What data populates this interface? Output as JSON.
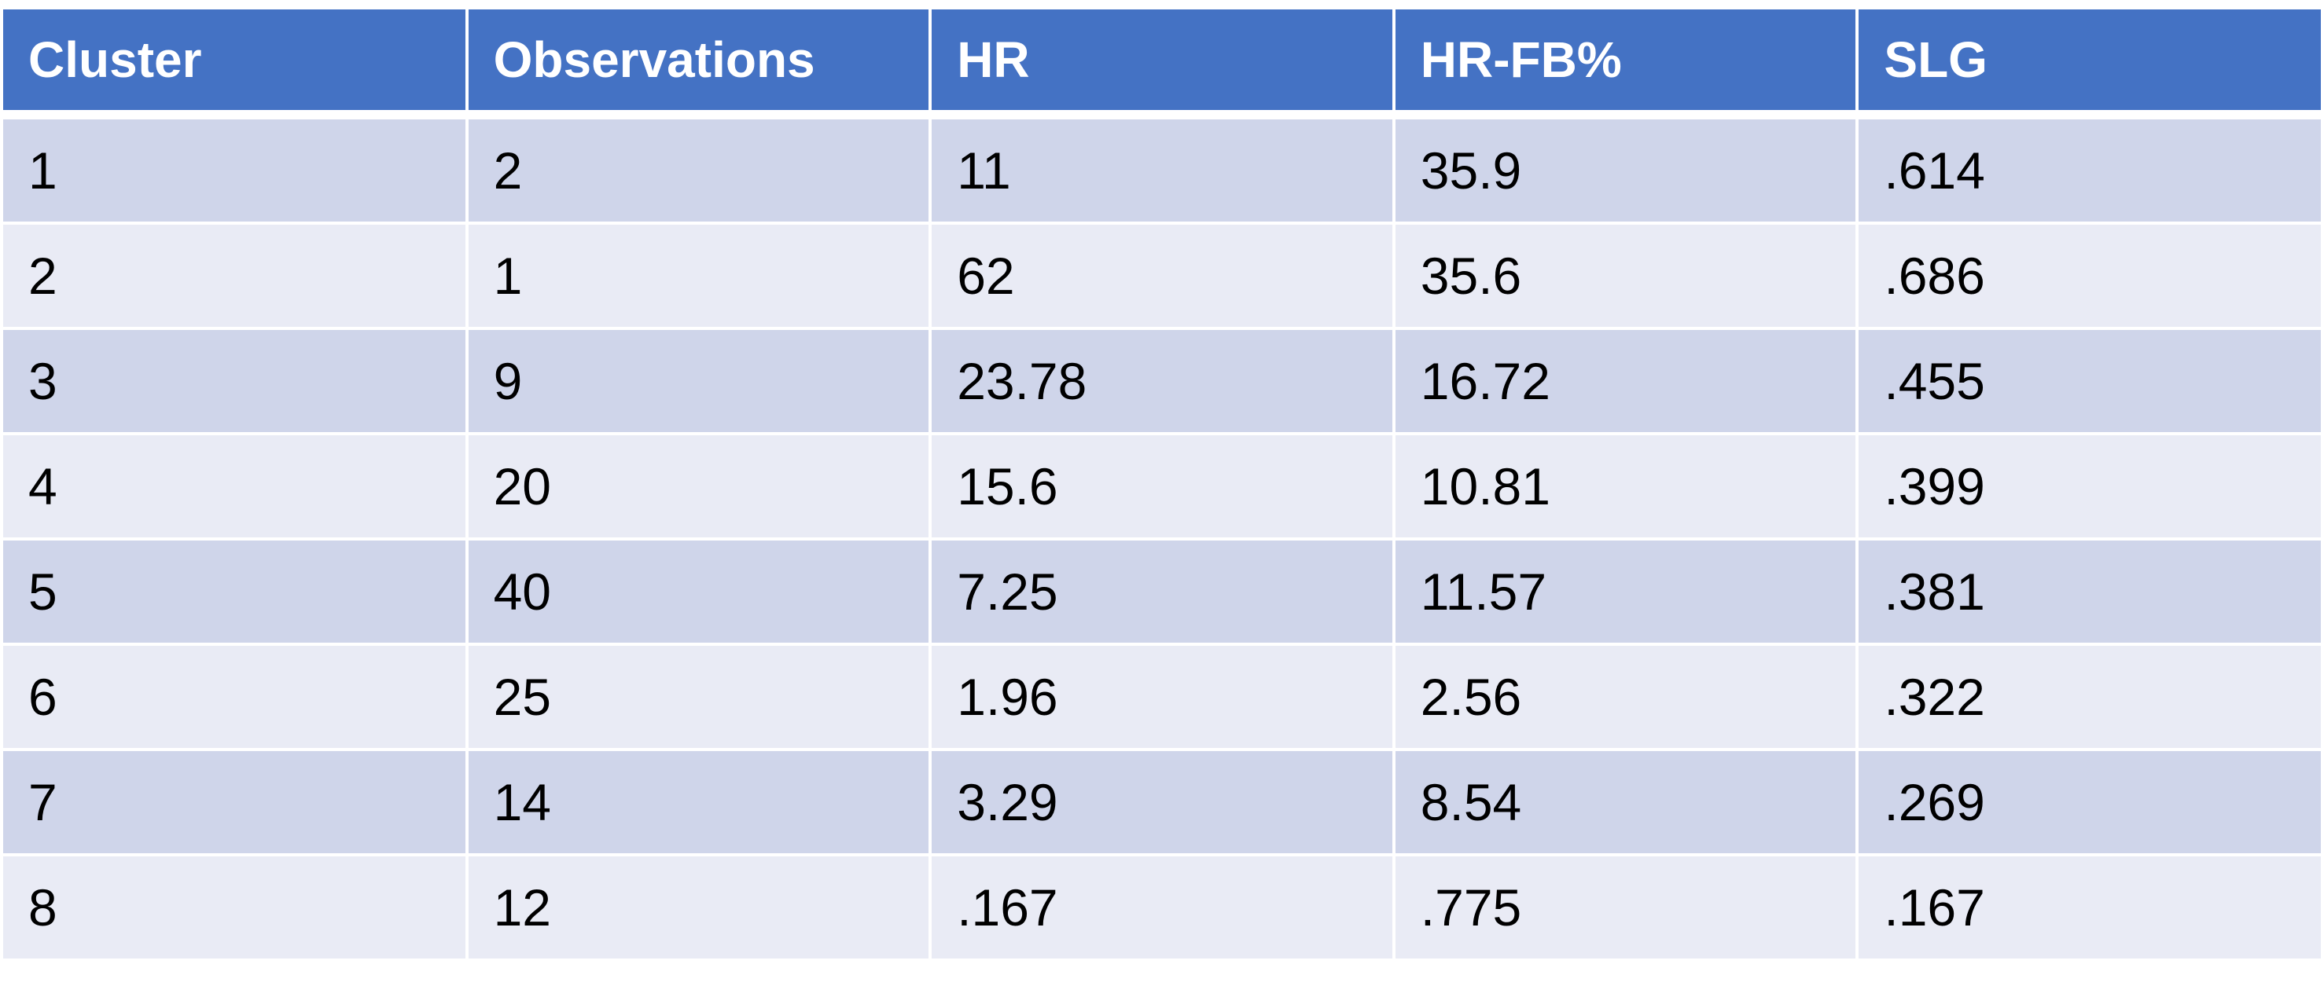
{
  "chart_data": {
    "type": "table",
    "columns": [
      "Cluster",
      "Observations",
      "HR",
      "HR-FB%",
      "SLG"
    ],
    "rows": [
      [
        "1",
        "2",
        "11",
        "35.9",
        ".614"
      ],
      [
        "2",
        "1",
        "62",
        "35.6",
        ".686"
      ],
      [
        "3",
        "9",
        "23.78",
        "16.72",
        ".455"
      ],
      [
        "4",
        "20",
        "15.6",
        "10.81",
        ".399"
      ],
      [
        "5",
        "40",
        "7.25",
        "11.57",
        ".381"
      ],
      [
        "6",
        "25",
        "1.96",
        "2.56",
        ".322"
      ],
      [
        "7",
        "14",
        "3.29",
        "8.54",
        ".269"
      ],
      [
        "8",
        "12",
        ".167",
        ".775",
        ".167"
      ]
    ]
  },
  "colors": {
    "header_bg": "#4472c4",
    "header_text": "#ffffff",
    "row_band_dark": "#cfd5ea",
    "row_band_light": "#e9ebf5",
    "cell_text": "#000000",
    "gridline": "#ffffff"
  }
}
